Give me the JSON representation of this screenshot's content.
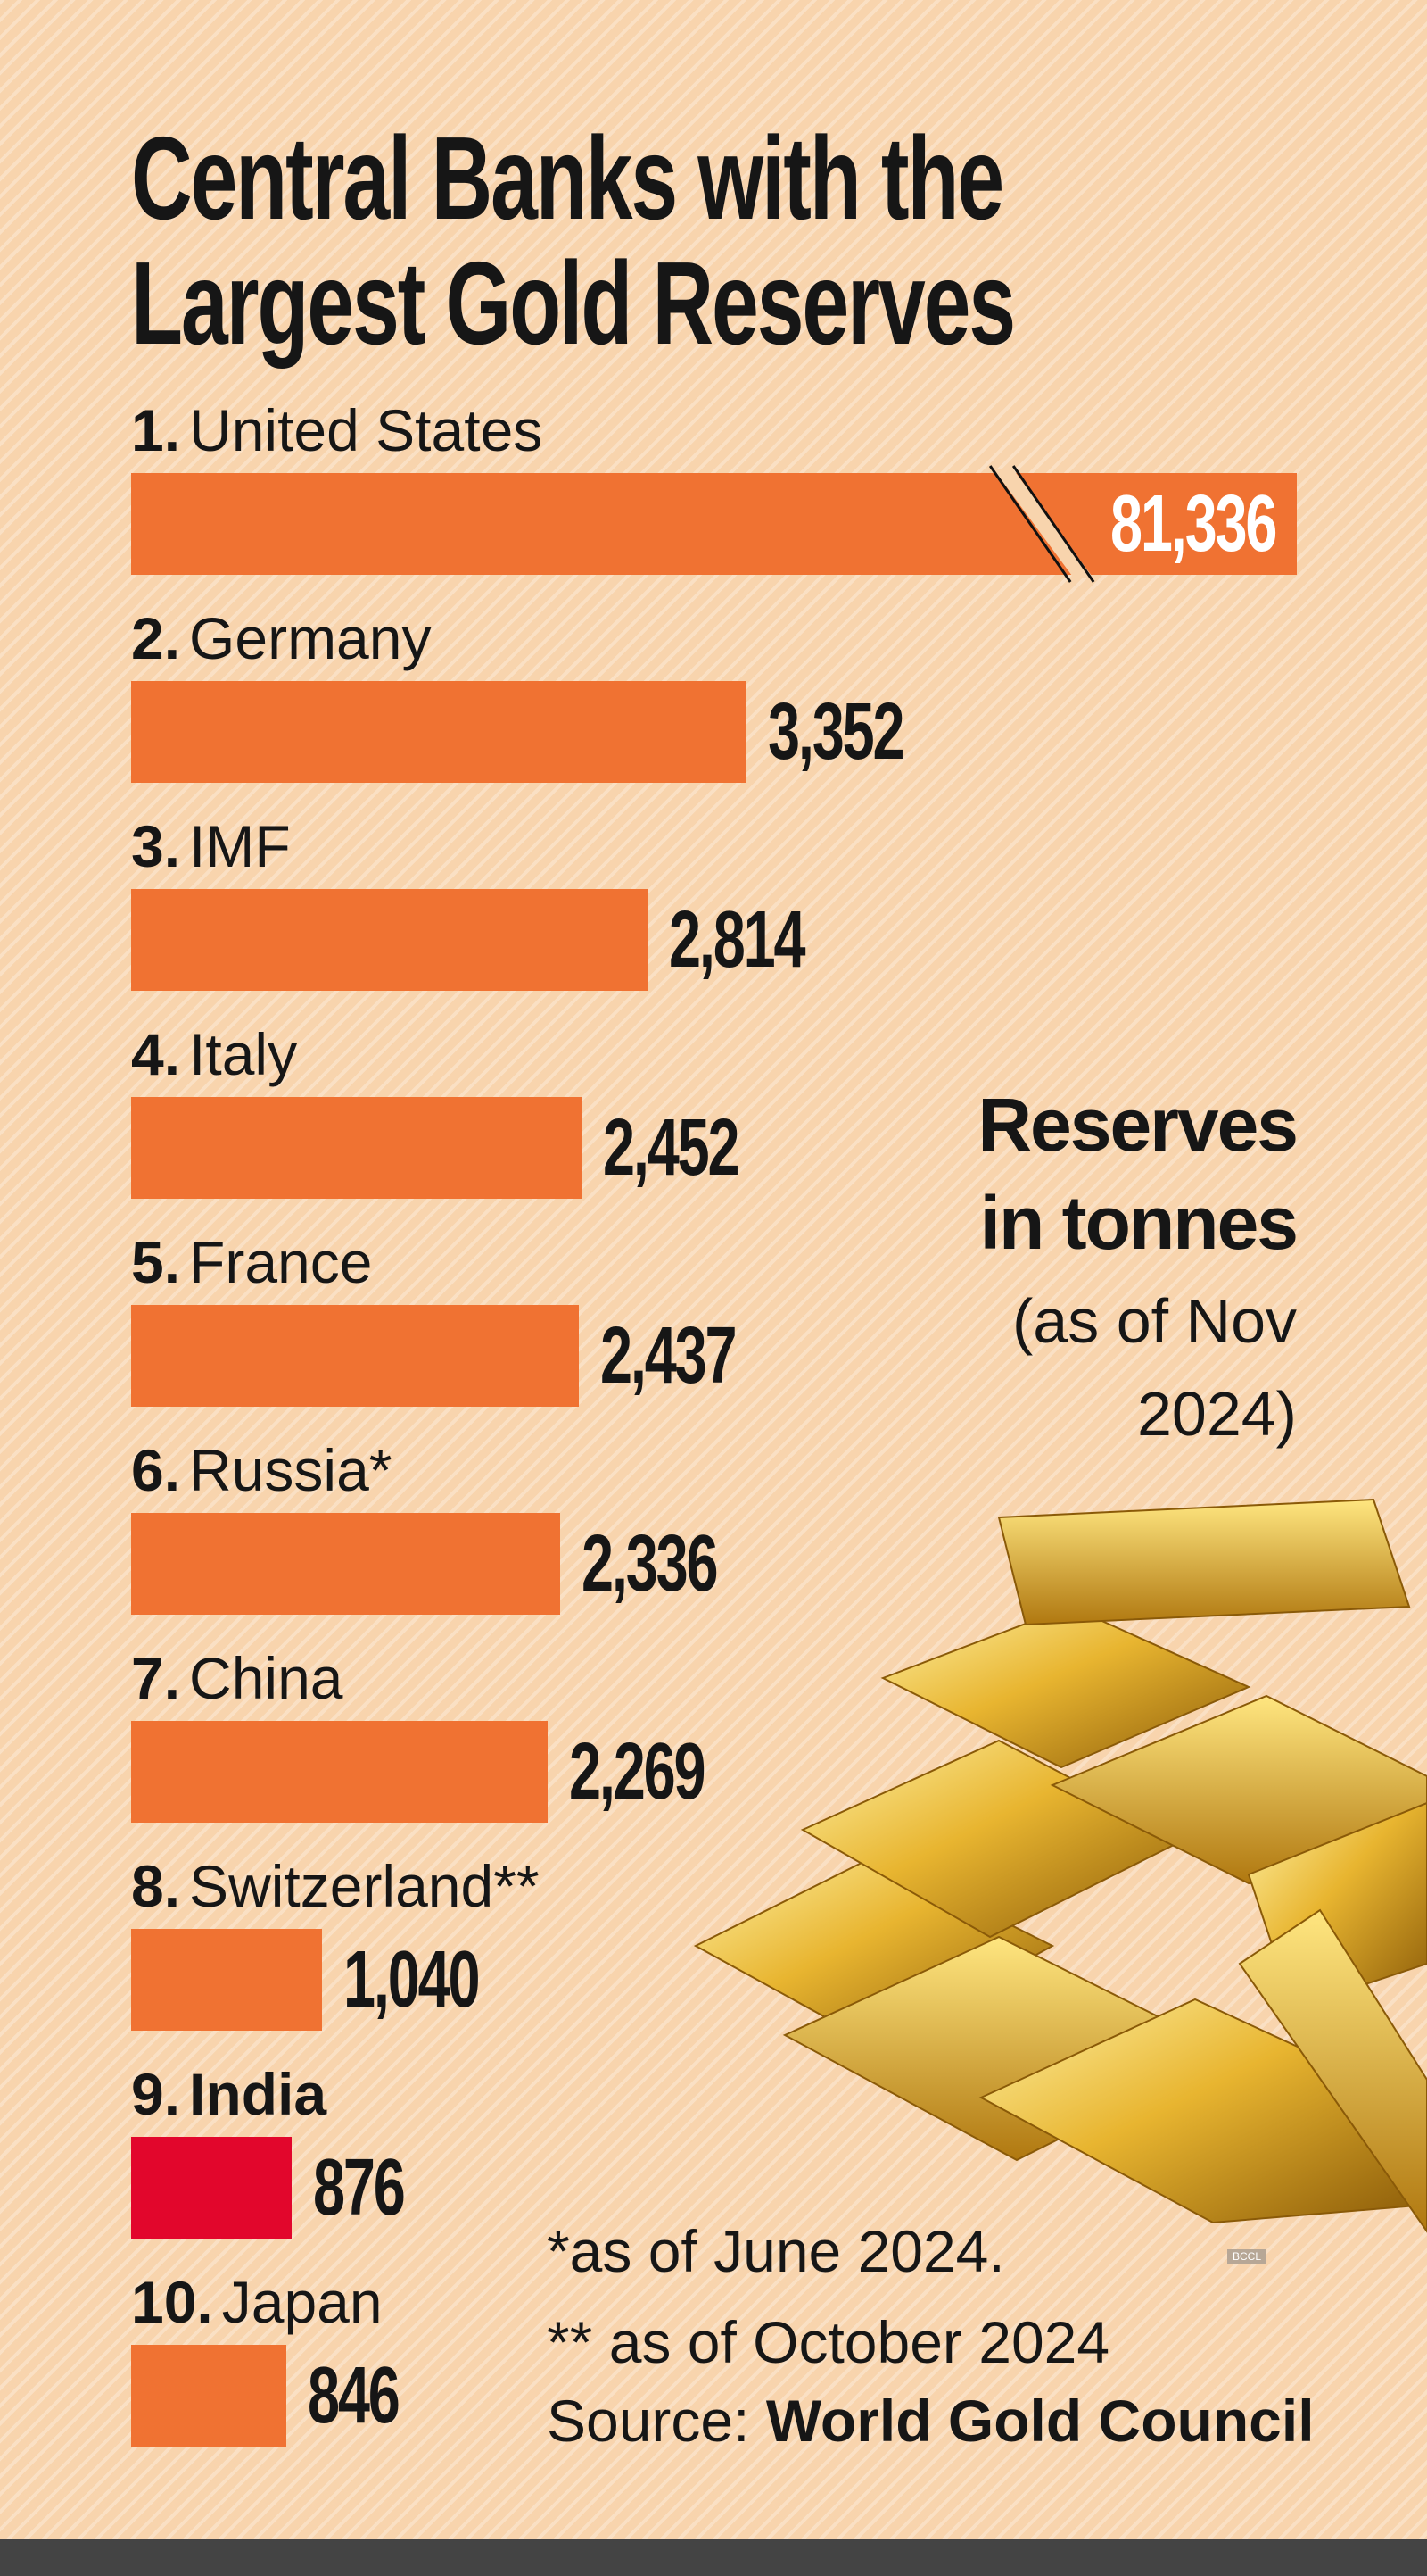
{
  "chart_data": {
    "type": "bar",
    "title": "Central Banks with the Largest Gold Reserves",
    "ranks": [
      "1.",
      "2.",
      "3.",
      "4.",
      "5.",
      "6.",
      "7.",
      "8.",
      "9.",
      "10."
    ],
    "categories": [
      "United States",
      "Germany",
      "IMF",
      "Italy",
      "France",
      "Russia*",
      "China",
      "Switzerland**",
      "India",
      "Japan"
    ],
    "values": [
      81336,
      3352,
      2814,
      2452,
      2437,
      2336,
      2269,
      1040,
      876,
      846
    ],
    "value_labels": [
      "81,336",
      "3,352",
      "2,814",
      "2,452",
      "2,437",
      "2,336",
      "2,269",
      "1,040",
      "876",
      "846"
    ],
    "color": "#f07232",
    "colors": [
      "#f07232",
      "#f07232",
      "#f07232",
      "#f07232",
      "#f07232",
      "#f07232",
      "#f07232",
      "#f07232",
      "#e2062c",
      "#f07232"
    ],
    "subtitle": "Reserves in tonnes",
    "note": "(as of Nov 2024)",
    "footnotes": [
      "*as of June 2024.",
      "** as of October 2024"
    ],
    "source_label": "Source:",
    "source": "World Gold Council",
    "watermark": "BCCL"
  }
}
